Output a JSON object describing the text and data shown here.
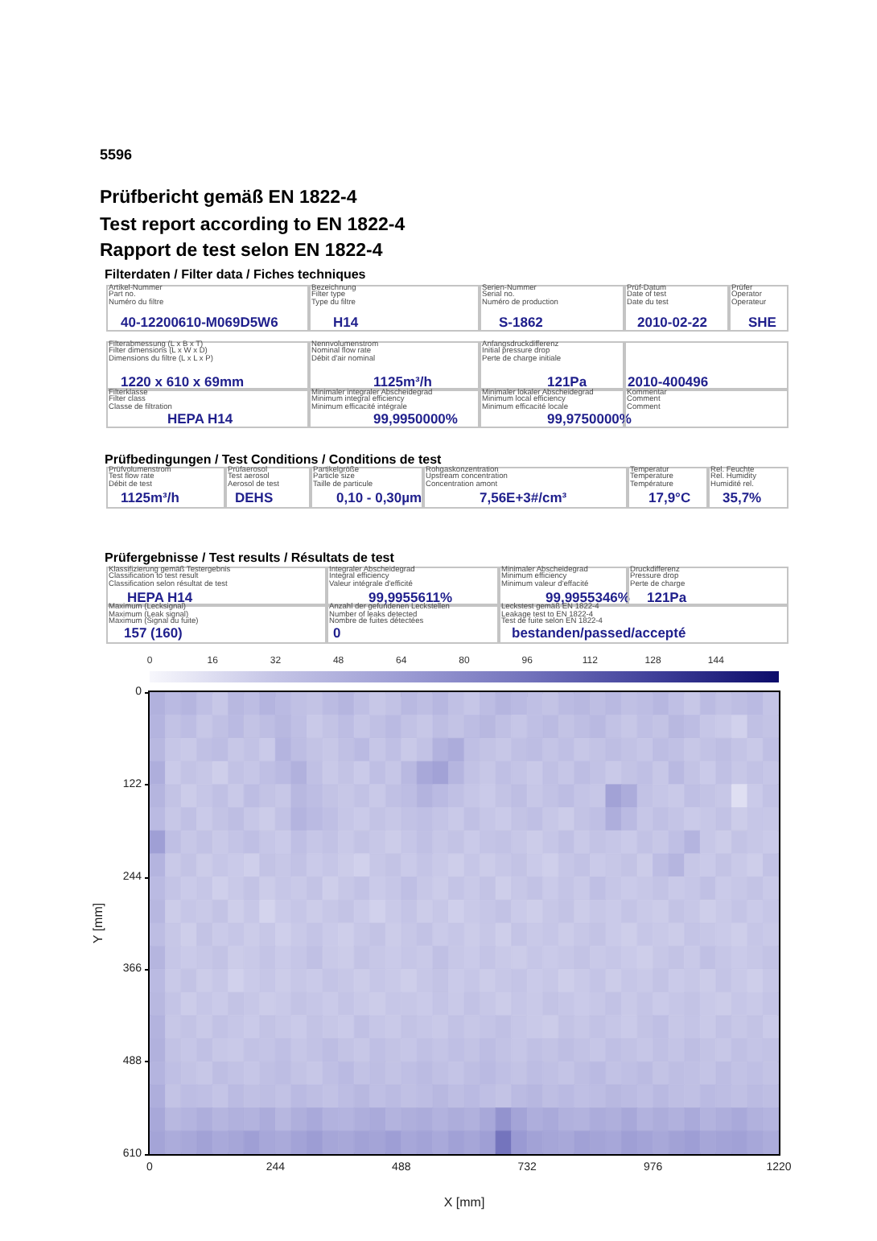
{
  "chart_data": [
    {
      "type": "other",
      "title": "Prüfbericht gemäß EN 1822-4",
      "subtitle": "Test report according to EN 1822-4",
      "annotations": [
        "5596",
        "Rapport de test selon EN 1822-4",
        "Filterdaten / Filter data / Fiches techniques",
        "Artikel-Nummer",
        "Part no.",
        "Numéro du filtre",
        "40-12200610-M069D5W6",
        "Bezeichnung",
        "Filter type",
        "Type du filtre",
        "H14",
        "Serien-Nummer",
        "Serial no.",
        "Numéro de production",
        "S-1862",
        "Prüf-Datum",
        "Date of test",
        "Date du test",
        "2010-02-22",
        "Prüfer",
        "Operator",
        "Operateur",
        "SHE",
        "Filterabmessung (L x B x T)",
        "Filter dimensions (L x W x D)",
        "Dimensions du filtre (L x L x P)",
        "1220 x 610 x 69mm",
        "Nennvolumenstrom",
        "Nominal flow rate",
        "Débit d'air nominal",
        "1125m³/h",
        "Anfangsdruckdifferenz",
        "Initial pressure drop",
        "Perte de charge initiale",
        "121Pa",
        "2010-400496",
        "Filterklasse",
        "Filter class",
        "Classe de filtration",
        "HEPA H14",
        "Minimaler integraler Abscheidegrad",
        "Minimum integral efficiency",
        "Minimum efficacité intégrale",
        "99,9950000%",
        "Minimaler lokaler Abscheidegrad",
        "Minimum local efficiency",
        "Minimum efficacité locale",
        "99,9750000%",
        "Kommentar",
        "Comment",
        "Comment",
        "Prüfbedingungen / Test Conditions / Conditions de test",
        "Prüfvolumenstrom",
        "Test flow rate",
        "Débit de test",
        "1125m³/h",
        "Prüfaerosol",
        "Test aerosol",
        "Aerosol de test",
        "DEHS",
        "Partikelgröße",
        "Particle size",
        "Taille de particule",
        "0,10 - 0,30µm",
        "Rohgaskonzentration",
        "Upstream concentration",
        "Concentration amont",
        "7,56E+3#/cm³",
        "Temperatur",
        "Temperature",
        "Température",
        "17,9°C",
        "Rel. Feuchte",
        "Rel. Humidity",
        "Humidité rel.",
        "35,7%",
        "Prüfergebnisse / Test results / Résultats de test",
        "Klassifizierung gemäß Testergebnis",
        "Classification to test result",
        "Classification selon résultat de test",
        "HEPA H14",
        "Integraler Abscheidegrad",
        "Integral efficiency",
        "Valeur intégrale d'efficité",
        "99,9955611%",
        "Minimaler Abscheidegrad",
        "Minimum efficiency",
        "Minimum valeur d'effacité",
        "99,9955346%",
        "Druckdifferenz",
        "Pressure drop",
        "Perte de charge",
        "121Pa",
        "Maximum (Lecksignal)",
        "Maximum (Leak signal)",
        "Maximum (Signal du fuite)",
        "157 (160)",
        "Anzahl der gefundenen Leckstellen",
        "Number of leaks detected",
        "Nombre de fuites détectées",
        "0",
        "Leckstest gemäß EN 1822-4",
        "Leakage test to EN 1822-4",
        "Test de fuite selon EN 1822-4",
        "bestanden/passed/accepté"
      ]
    },
    {
      "type": "heatmap",
      "xlabel": "X [mm]",
      "ylabel": "Y [mm]",
      "xlim": [
        0,
        1220
      ],
      "ylim": [
        610,
        0
      ],
      "xticks": [
        0,
        244,
        488,
        732,
        976,
        1220
      ],
      "yticks": [
        0,
        122,
        244,
        366,
        488,
        610
      ],
      "clim": [
        0,
        160
      ],
      "cticks": [
        0,
        16,
        32,
        48,
        64,
        80,
        96,
        112,
        128,
        144
      ],
      "cells": [
        [
          48,
          40,
          44,
          36,
          30,
          42,
          38,
          45,
          40,
          35,
          33,
          39,
          44,
          36,
          30,
          34,
          41,
          37,
          43,
          35,
          31,
          38,
          44,
          40,
          36,
          33,
          39,
          42,
          37,
          41,
          35,
          38,
          43,
          36,
          30,
          39,
          34,
          37,
          40,
          32
        ],
        [
          45,
          34,
          38,
          30,
          35,
          40,
          33,
          37,
          42,
          36,
          29,
          33,
          38,
          31,
          35,
          40,
          34,
          30,
          37,
          33,
          38,
          42,
          35,
          31,
          36,
          39,
          33,
          37,
          41,
          34,
          30,
          36,
          33,
          42,
          38,
          31,
          28,
          24,
          35,
          33
        ],
        [
          42,
          31,
          29,
          35,
          38,
          30,
          34,
          28,
          45,
          38,
          33,
          30,
          35,
          40,
          31,
          36,
          29,
          34,
          47,
          52,
          36,
          33,
          30,
          35,
          38,
          32,
          36,
          30,
          33,
          37,
          34,
          31,
          38,
          35,
          30,
          34,
          37,
          32,
          29,
          36
        ],
        [
          50,
          28,
          33,
          30,
          26,
          34,
          31,
          36,
          40,
          48,
          35,
          29,
          33,
          28,
          36,
          31,
          41,
          55,
          60,
          44,
          34,
          30,
          36,
          32,
          29,
          35,
          31,
          38,
          34,
          29,
          33,
          36,
          30,
          41,
          33,
          28,
          35,
          30,
          34,
          31
        ],
        [
          44,
          33,
          27,
          31,
          35,
          29,
          38,
          33,
          30,
          42,
          38,
          33,
          30,
          34,
          29,
          35,
          38,
          46,
          40,
          35,
          31,
          28,
          33,
          37,
          30,
          34,
          38,
          32,
          30,
          60,
          52,
          34,
          31,
          29,
          36,
          33,
          30,
          15,
          28,
          34
        ],
        [
          40,
          30,
          35,
          28,
          33,
          37,
          30,
          27,
          34,
          45,
          40,
          36,
          31,
          28,
          33,
          30,
          34,
          36,
          32,
          29,
          35,
          31,
          28,
          33,
          36,
          30,
          27,
          33,
          36,
          50,
          40,
          31,
          35,
          32,
          28,
          30,
          34,
          27,
          31,
          30
        ],
        [
          62,
          36,
          30,
          34,
          29,
          32,
          36,
          31,
          28,
          36,
          31,
          34,
          29,
          33,
          30,
          27,
          31,
          35,
          30,
          33,
          28,
          32,
          34,
          30,
          27,
          31,
          35,
          29,
          33,
          31,
          28,
          34,
          30,
          36,
          45,
          30,
          27,
          33,
          30,
          28
        ],
        [
          45,
          29,
          33,
          27,
          31,
          28,
          25,
          33,
          30,
          34,
          28,
          31,
          27,
          24,
          30,
          33,
          28,
          32,
          29,
          26,
          31,
          27,
          30,
          33,
          28,
          25,
          31,
          34,
          28,
          30,
          33,
          27,
          38,
          44,
          30,
          28,
          33,
          29,
          26,
          34
        ],
        [
          40,
          32,
          28,
          31,
          25,
          29,
          33,
          27,
          31,
          29,
          33,
          26,
          30,
          34,
          28,
          31,
          36,
          30,
          27,
          32,
          29,
          33,
          26,
          30,
          34,
          28,
          32,
          29,
          36,
          31,
          28,
          30,
          33,
          29,
          31,
          35,
          28,
          30,
          33,
          29
        ],
        [
          43,
          27,
          31,
          29,
          33,
          26,
          30,
          22,
          28,
          31,
          27,
          30,
          33,
          28,
          24,
          29,
          32,
          27,
          30,
          25,
          29,
          31,
          34,
          28,
          26,
          30,
          33,
          27,
          30,
          28,
          32,
          29,
          27,
          33,
          30,
          26,
          29,
          32,
          28,
          31
        ],
        [
          38,
          30,
          26,
          33,
          28,
          31,
          27,
          30,
          25,
          29,
          32,
          28,
          26,
          30,
          33,
          27,
          30,
          34,
          28,
          31,
          27,
          30,
          26,
          32,
          29,
          31,
          27,
          30,
          33,
          28,
          26,
          31,
          29,
          27,
          32,
          30,
          28,
          26,
          31,
          29
        ],
        [
          44,
          31,
          28,
          30,
          33,
          27,
          29,
          32,
          28,
          31,
          35,
          29,
          27,
          33,
          30,
          28,
          31,
          29,
          35,
          30,
          28,
          32,
          29,
          27,
          31,
          28,
          30,
          33,
          29,
          31,
          28,
          26,
          30,
          33,
          29,
          35,
          31,
          28,
          30,
          33
        ],
        [
          40,
          29,
          33,
          27,
          30,
          24,
          28,
          31,
          27,
          30,
          28,
          32,
          30,
          27,
          31,
          29,
          26,
          30,
          33,
          28,
          31,
          27,
          30,
          32,
          28,
          30,
          26,
          29,
          32,
          27,
          31,
          29,
          33,
          28,
          30,
          27,
          32,
          29,
          26,
          30
        ],
        [
          42,
          32,
          27,
          31,
          28,
          33,
          30,
          27,
          29,
          33,
          31,
          28,
          32,
          29,
          27,
          31,
          30,
          28,
          32,
          29,
          34,
          30,
          27,
          31,
          29,
          33,
          31,
          28,
          30,
          34,
          29,
          32,
          28,
          31,
          33,
          29,
          27,
          31,
          29,
          32
        ],
        [
          46,
          30,
          33,
          29,
          34,
          31,
          28,
          33,
          30,
          28,
          33,
          30,
          28,
          35,
          31,
          29,
          33,
          31,
          29,
          34,
          30,
          32,
          35,
          31,
          29,
          27,
          33,
          30,
          34,
          31,
          28,
          33,
          36,
          30,
          32,
          29,
          34,
          30,
          33,
          28
        ],
        [
          48,
          34,
          31,
          35,
          30,
          29,
          34,
          32,
          36,
          31,
          34,
          38,
          33,
          30,
          36,
          33,
          31,
          35,
          32,
          36,
          33,
          38,
          34,
          31,
          35,
          33,
          37,
          34,
          31,
          36,
          34,
          31,
          35,
          32,
          37,
          33,
          30,
          35,
          32,
          34
        ],
        [
          45,
          36,
          33,
          30,
          37,
          34,
          31,
          35,
          38,
          33,
          30,
          36,
          40,
          34,
          37,
          33,
          36,
          39,
          35,
          32,
          37,
          40,
          36,
          33,
          38,
          35,
          32,
          37,
          40,
          34,
          36,
          39,
          33,
          37,
          35,
          32,
          38,
          34,
          36,
          33
        ],
        [
          50,
          33,
          38,
          36,
          32,
          39,
          35,
          37,
          34,
          40,
          37,
          34,
          38,
          42,
          36,
          39,
          35,
          38,
          42,
          37,
          40,
          36,
          33,
          39,
          43,
          37,
          40,
          36,
          38,
          42,
          39,
          36,
          41,
          37,
          35,
          40,
          38,
          35,
          39,
          37
        ],
        [
          55,
          42,
          45,
          50,
          44,
          48,
          46,
          52,
          43,
          49,
          54,
          47,
          45,
          50,
          53,
          46,
          49,
          52,
          47,
          51,
          48,
          55,
          72,
          58,
          50,
          53,
          48,
          46,
          52,
          49,
          55,
          47,
          51,
          48,
          53,
          46,
          50,
          54,
          48,
          45
        ],
        [
          58,
          52,
          55,
          60,
          54,
          57,
          62,
          56,
          53,
          59,
          64,
          57,
          55,
          60,
          58,
          63,
          56,
          59,
          54,
          61,
          57,
          62,
          95,
          66,
          60,
          57,
          55,
          61,
          58,
          56,
          62,
          59,
          55,
          60,
          63,
          57,
          59,
          61,
          56,
          52
        ]
      ]
    }
  ]
}
